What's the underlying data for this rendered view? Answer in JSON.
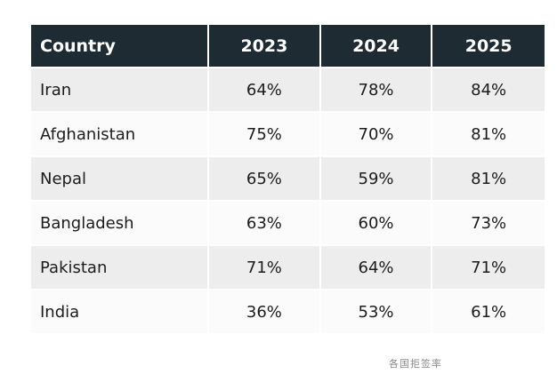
{
  "table": {
    "headers": [
      "Country",
      "2023",
      "2024",
      "2025"
    ],
    "rows": [
      {
        "country": "Iran",
        "values": [
          "64%",
          "78%",
          "84%"
        ]
      },
      {
        "country": "Afghanistan",
        "values": [
          "75%",
          "70%",
          "81%"
        ]
      },
      {
        "country": "Nepal",
        "values": [
          "65%",
          "59%",
          "81%"
        ]
      },
      {
        "country": "Bangladesh",
        "values": [
          "63%",
          "60%",
          "73%"
        ]
      },
      {
        "country": "Pakistan",
        "values": [
          "71%",
          "64%",
          "71%"
        ]
      },
      {
        "country": "India",
        "values": [
          "36%",
          "53%",
          "61%"
        ]
      }
    ]
  },
  "caption": "各国拒签率",
  "colors": {
    "header_bg": "#1f2b33",
    "header_text": "#ffffff",
    "row_odd_bg": "#ededed",
    "row_even_bg": "#fbfbfb"
  }
}
